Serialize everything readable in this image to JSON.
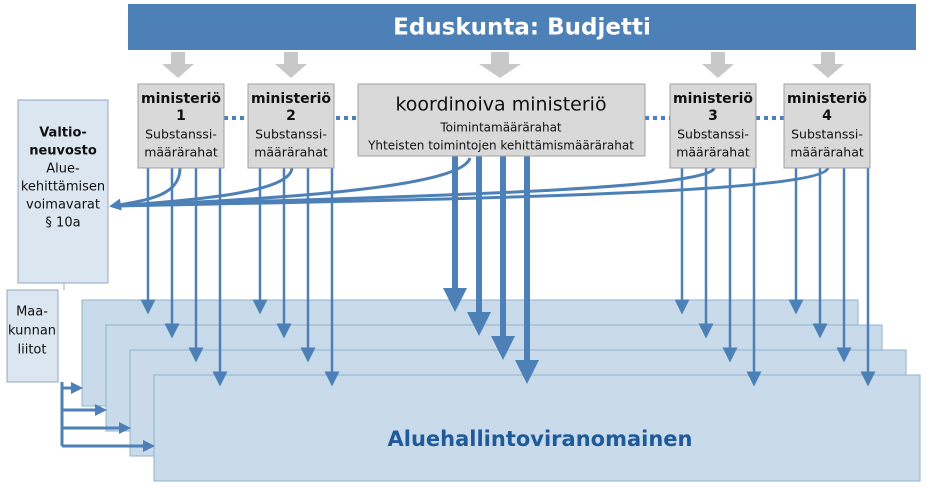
{
  "header": {
    "title": "Eduskunta: Budjetti"
  },
  "ministries": [
    {
      "name": "ministeriö",
      "number": "1",
      "funding": [
        "Substanssi-",
        "määrärahat"
      ]
    },
    {
      "name": "ministeriö",
      "number": "2",
      "funding": [
        "Substanssi-",
        "määrärahat"
      ]
    },
    {
      "name": "ministeriö",
      "number": "3",
      "funding": [
        "Substanssi-",
        "määrärahat"
      ]
    },
    {
      "name": "ministeriö",
      "number": "4",
      "funding": [
        "Substanssi-",
        "määrärahat"
      ]
    }
  ],
  "coordinating": {
    "name": "koordinoiva ministeriö",
    "lines": [
      "Toimintamäärärahat",
      "Yhteisten toimintojen kehittämismäärärahat"
    ]
  },
  "government": {
    "title": [
      "Valtio-",
      "neuvosto"
    ],
    "lines": [
      "Alue-",
      "kehittämisen",
      "voimavarat",
      "§ 10a"
    ]
  },
  "regional_councils": {
    "lines": [
      "Maa-",
      "kunnan",
      "liitot"
    ]
  },
  "authority": {
    "label": "Aluehallintoviranomainen"
  }
}
